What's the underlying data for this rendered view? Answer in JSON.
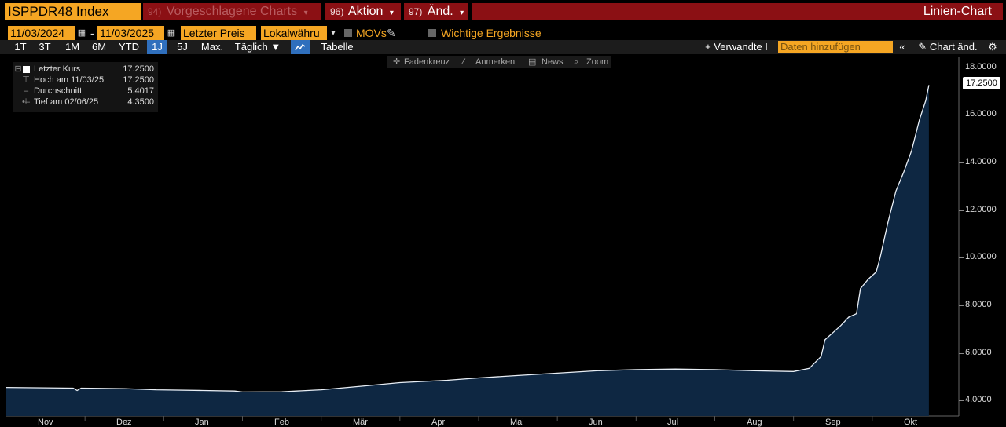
{
  "header": {
    "ticker": "ISPPDR48 Index",
    "suggested_num": "94)",
    "suggested": "Vorgeschlagene Charts",
    "action_num": "96)",
    "action": "Aktion",
    "change_num": "97)",
    "change": "Änd.",
    "chart_type": "Linien-Chart"
  },
  "controls": {
    "date_from": "11/03/2024",
    "date_to": "11/03/2025",
    "price_field": "Letzter Preis",
    "currency": "Lokalwähru",
    "movs": "MOVs",
    "key_results": "Wichtige Ergebnisse",
    "date_sep": "-"
  },
  "ranges": [
    "1T",
    "3T",
    "1M",
    "6M",
    "YTD",
    "1J",
    "5J",
    "Max."
  ],
  "selected_range": "1J",
  "frequency": "Täglich ▼",
  "table": "Tabelle",
  "related": "+ Verwandte I",
  "add_data_placeholder": "Daten hinzufügen",
  "chart_edit": "Chart änd.",
  "toolbar": {
    "crosshair": "Fadenkreuz",
    "annotate": "Anmerken",
    "news": "News",
    "zoom": "Zoom"
  },
  "legend": [
    {
      "label": "Letzter Kurs",
      "value": "17.2500"
    },
    {
      "label": "Hoch am 11/03/25",
      "value": "17.2500"
    },
    {
      "label": "Durchschnitt",
      "value": "5.4017"
    },
    {
      "label": "Tief am 02/06/25",
      "value": "4.3500"
    }
  ],
  "last_value_badge": "17.2500",
  "colors": {
    "accent": "#f5a623",
    "header_red": "#8b1014",
    "selected": "#2f6fbd",
    "area": "#0e2742"
  },
  "chart_data": {
    "type": "area",
    "x_months": [
      "Nov",
      "Dez",
      "Jan",
      "Feb",
      "Mär",
      "Apr",
      "Mai",
      "Jun",
      "Jul",
      "Aug",
      "Sep",
      "Okt"
    ],
    "y_ticks": [
      "4.0000",
      "6.0000",
      "8.0000",
      "10.0000",
      "12.0000",
      "14.0000",
      "16.0000",
      "18.0000"
    ],
    "ylim": [
      3.35,
      18.45
    ],
    "x_range_months": [
      0,
      12.1
    ],
    "series": [
      {
        "points": [
          [
            0.0,
            4.55
          ],
          [
            0.85,
            4.52
          ],
          [
            0.9,
            4.42
          ],
          [
            0.95,
            4.52
          ],
          [
            1.5,
            4.5
          ],
          [
            1.9,
            4.45
          ],
          [
            2.5,
            4.42
          ],
          [
            2.9,
            4.4
          ],
          [
            3.0,
            4.36
          ],
          [
            3.5,
            4.37
          ],
          [
            4.0,
            4.45
          ],
          [
            4.5,
            4.6
          ],
          [
            5.0,
            4.75
          ],
          [
            5.6,
            4.85
          ],
          [
            6.0,
            4.95
          ],
          [
            6.5,
            5.05
          ],
          [
            7.0,
            5.15
          ],
          [
            7.5,
            5.25
          ],
          [
            8.0,
            5.3
          ],
          [
            8.5,
            5.32
          ],
          [
            9.0,
            5.3
          ],
          [
            9.5,
            5.25
          ],
          [
            10.0,
            5.22
          ],
          [
            10.2,
            5.35
          ],
          [
            10.35,
            5.85
          ],
          [
            10.4,
            6.55
          ],
          [
            10.5,
            6.85
          ],
          [
            10.6,
            7.15
          ],
          [
            10.7,
            7.5
          ],
          [
            10.8,
            7.65
          ],
          [
            10.85,
            8.7
          ],
          [
            10.95,
            9.1
          ],
          [
            11.05,
            9.4
          ],
          [
            11.1,
            10.0
          ],
          [
            11.2,
            11.5
          ],
          [
            11.3,
            12.8
          ],
          [
            11.4,
            13.6
          ],
          [
            11.5,
            14.5
          ],
          [
            11.6,
            15.8
          ],
          [
            11.68,
            16.6
          ],
          [
            11.72,
            17.25
          ]
        ]
      }
    ]
  }
}
